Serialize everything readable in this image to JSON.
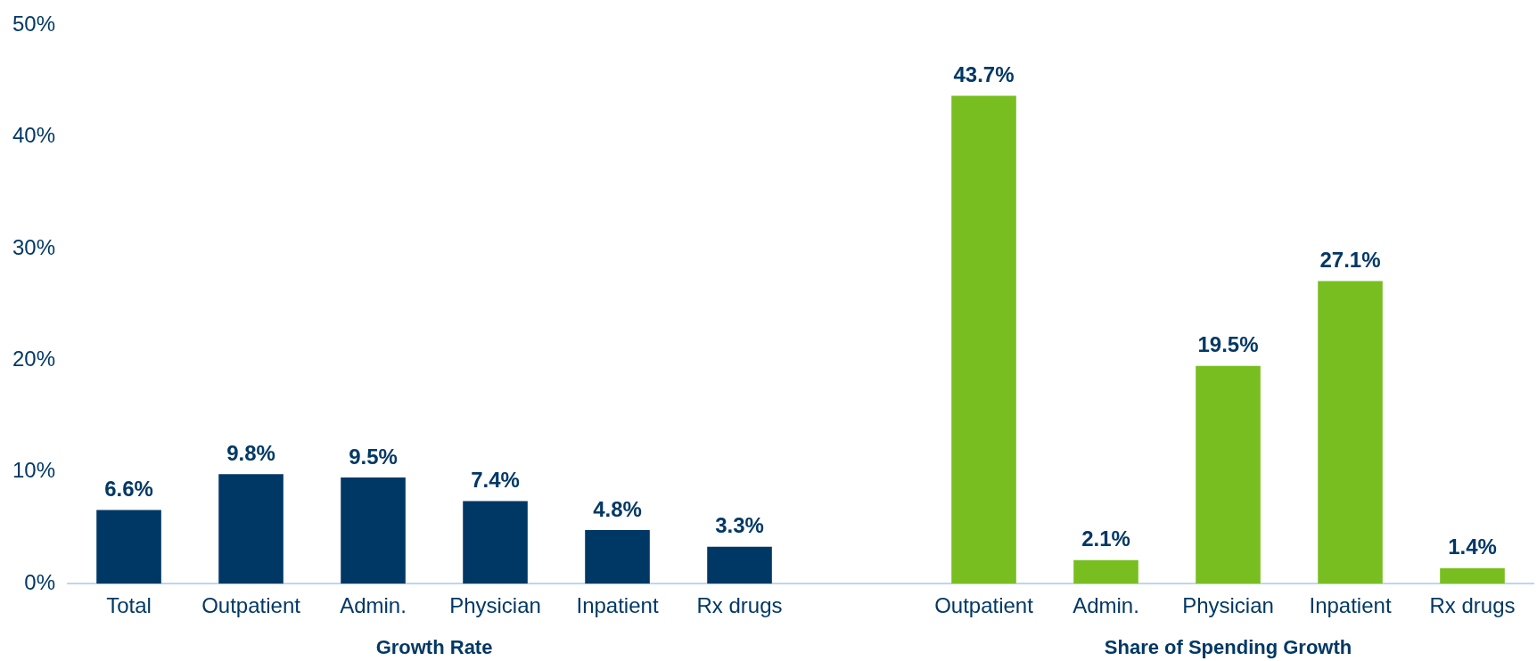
{
  "chart_data": {
    "type": "bar",
    "categories": [
      "Total",
      "Outpatient",
      "Admin.",
      "Physician",
      "Inpatient",
      "Rx drugs",
      null,
      "Outpatient",
      "Admin.",
      "Physician",
      "Inpatient",
      "Rx drugs"
    ],
    "series": [
      {
        "name": "Growth Rate",
        "color": "#003865",
        "values": [
          6.6,
          9.8,
          9.5,
          7.4,
          4.8,
          3.3,
          null,
          null,
          null,
          null,
          null,
          null
        ],
        "value_labels": [
          "6.6%",
          "9.8%",
          "9.5%",
          "7.4%",
          "4.8%",
          "3.3%",
          null,
          null,
          null,
          null,
          null,
          null
        ]
      },
      {
        "name": "Share of Spending Growth",
        "color": "#78be20",
        "values": [
          null,
          null,
          null,
          null,
          null,
          null,
          null,
          43.7,
          2.1,
          19.5,
          27.1,
          1.4
        ],
        "value_labels": [
          null,
          null,
          null,
          null,
          null,
          null,
          null,
          "43.7%",
          "2.1%",
          "19.5%",
          "27.1%",
          "1.4%"
        ]
      }
    ],
    "ylim": [
      0,
      50
    ],
    "yticks": [
      {
        "value": 0,
        "label": "0%"
      },
      {
        "value": 10,
        "label": "10%"
      },
      {
        "value": 20,
        "label": "20%"
      },
      {
        "value": 30,
        "label": "30%"
      },
      {
        "value": 40,
        "label": "40%"
      },
      {
        "value": 50,
        "label": "50%"
      }
    ],
    "grid": false,
    "legend": false
  }
}
